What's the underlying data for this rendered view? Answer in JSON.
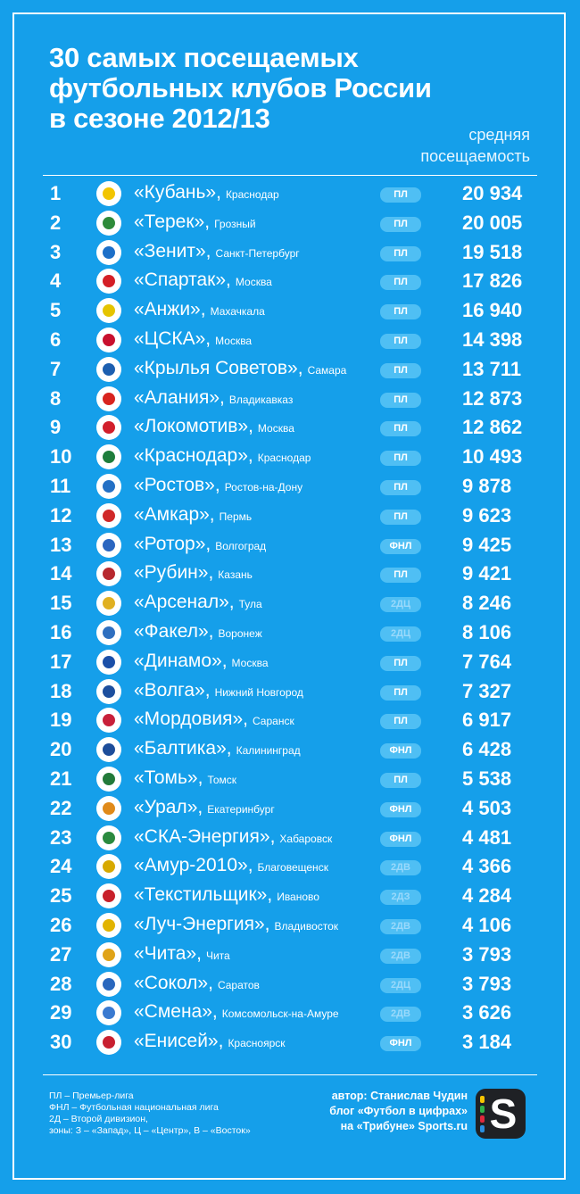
{
  "title_lines": [
    "30 самых посещаемых",
    "футбольных клубов России",
    "в сезоне 2012/13"
  ],
  "column_header_lines": [
    "средняя",
    "посещаемость"
  ],
  "rows": [
    {
      "rank": "1",
      "club": "«Кубань»,",
      "city": "Краснодар",
      "league": "ПЛ",
      "value": "20 934",
      "color": "#f2c500"
    },
    {
      "rank": "2",
      "club": "«Терек»,",
      "city": "Грозный",
      "league": "ПЛ",
      "value": "20 005",
      "color": "#2e8b3a"
    },
    {
      "rank": "3",
      "club": "«Зенит»,",
      "city": "Санкт-Петербург",
      "league": "ПЛ",
      "value": "19 518",
      "color": "#1c6fc8"
    },
    {
      "rank": "4",
      "club": "«Спартак»,",
      "city": "Москва",
      "league": "ПЛ",
      "value": "17 826",
      "color": "#d41f26"
    },
    {
      "rank": "5",
      "club": "«Анжи»,",
      "city": "Махачкала",
      "league": "ПЛ",
      "value": "16 940",
      "color": "#e5c400"
    },
    {
      "rank": "6",
      "club": "«ЦСКА»,",
      "city": "Москва",
      "league": "ПЛ",
      "value": "14 398",
      "color": "#c8102e"
    },
    {
      "rank": "7",
      "club": "«Крылья Советов»,",
      "city": "Самара",
      "league": "ПЛ",
      "value": "13 711",
      "color": "#1c5fb0"
    },
    {
      "rank": "8",
      "club": "«Алания»,",
      "city": "Владикавказ",
      "league": "ПЛ",
      "value": "12 873",
      "color": "#d8241f"
    },
    {
      "rank": "9",
      "club": "«Локомотив»,",
      "city": "Москва",
      "league": "ПЛ",
      "value": "12 862",
      "color": "#d21f2b"
    },
    {
      "rank": "10",
      "club": "«Краснодар»,",
      "city": "Краснодар",
      "league": "ПЛ",
      "value": "10 493",
      "color": "#1e7d3c"
    },
    {
      "rank": "11",
      "club": "«Ростов»,",
      "city": "Ростов-на-Дону",
      "league": "ПЛ",
      "value": "9 878",
      "color": "#2470c5"
    },
    {
      "rank": "12",
      "club": "«Амкар»,",
      "city": "Пермь",
      "league": "ПЛ",
      "value": "9 623",
      "color": "#d02828"
    },
    {
      "rank": "13",
      "club": "«Ротор»,",
      "city": "Волгоград",
      "league": "ФНЛ",
      "value": "9 425",
      "color": "#2b66c0"
    },
    {
      "rank": "14",
      "club": "«Рубин»,",
      "city": "Казань",
      "league": "ПЛ",
      "value": "9 421",
      "color": "#b7282e"
    },
    {
      "rank": "15",
      "club": "«Арсенал»,",
      "city": "Тула",
      "league": "2ДЦ",
      "value": "8 246",
      "color": "#e0b020"
    },
    {
      "rank": "16",
      "club": "«Факел»,",
      "city": "Воронеж",
      "league": "2ДЦ",
      "value": "8 106",
      "color": "#2f6fbf"
    },
    {
      "rank": "17",
      "club": "«Динамо»,",
      "city": "Москва",
      "league": "ПЛ",
      "value": "7 764",
      "color": "#1b4fa8"
    },
    {
      "rank": "18",
      "club": "«Волга»,",
      "city": "Нижний Новгород",
      "league": "ПЛ",
      "value": "7 327",
      "color": "#1d4f9e"
    },
    {
      "rank": "19",
      "club": "«Мордовия»,",
      "city": "Саранск",
      "league": "ПЛ",
      "value": "6 917",
      "color": "#c8203a"
    },
    {
      "rank": "20",
      "club": "«Балтика»,",
      "city": "Калининград",
      "league": "ФНЛ",
      "value": "6 428",
      "color": "#1d4d9a"
    },
    {
      "rank": "21",
      "club": "«Томь»,",
      "city": "Томск",
      "league": "ПЛ",
      "value": "5 538",
      "color": "#237a3a"
    },
    {
      "rank": "22",
      "club": "«Урал»,",
      "city": "Екатеринбург",
      "league": "ФНЛ",
      "value": "4 503",
      "color": "#e08a1a"
    },
    {
      "rank": "23",
      "club": "«СКА-Энергия»,",
      "city": "Хабаровск",
      "league": "ФНЛ",
      "value": "4 481",
      "color": "#2a8a3f"
    },
    {
      "rank": "24",
      "club": "«Амур-2010»,",
      "city": "Благовещенск",
      "league": "2ДВ",
      "value": "4 366",
      "color": "#d7a900"
    },
    {
      "rank": "25",
      "club": "«Текстильщик»,",
      "city": "Иваново",
      "league": "2ДЗ",
      "value": "4 284",
      "color": "#c8202a"
    },
    {
      "rank": "26",
      "club": "«Луч-Энергия»,",
      "city": "Владивосток",
      "league": "2ДВ",
      "value": "4 106",
      "color": "#e2b400"
    },
    {
      "rank": "27",
      "club": "«Чита»,",
      "city": "Чита",
      "league": "2ДВ",
      "value": "3 793",
      "color": "#e0a317"
    },
    {
      "rank": "28",
      "club": "«Сокол»,",
      "city": "Саратов",
      "league": "2ДЦ",
      "value": "3 793",
      "color": "#2a67bd"
    },
    {
      "rank": "29",
      "club": "«Смена»,",
      "city": "Комсомольск-на-Амуре",
      "league": "2ДВ",
      "value": "3 626",
      "color": "#3a7ad0"
    },
    {
      "rank": "30",
      "club": "«Енисей»,",
      "city": "Красноярск",
      "league": "ФНЛ",
      "value": "3 184",
      "color": "#c82030"
    }
  ],
  "legend_lines": [
    "ПЛ – Премьер-лига",
    "ФНЛ – Футбольная национальная лига",
    "2Д – Второй дивизион,",
    "зоны: З – «Запад», Ц – «Центр», В – «Восток»"
  ],
  "credit_lines": [
    "автор: Станислав Чудин",
    "блог «Футбол в цифрах»",
    "на «Трибуне» Sports.ru"
  ],
  "sports_logo": {
    "letter": "S",
    "bar_colors": [
      "#f5c400",
      "#2fb24a",
      "#e0283c",
      "#2a8fe0"
    ]
  },
  "colors": {
    "background": "#159fea",
    "badge": "#4fbff4",
    "badge_minor_text": "#9ad9fb"
  }
}
